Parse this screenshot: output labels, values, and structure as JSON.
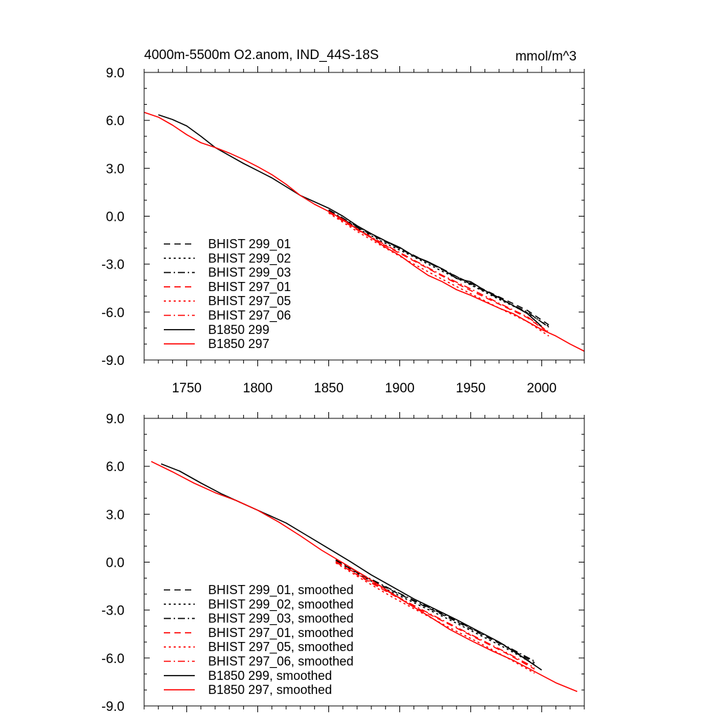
{
  "chart_data": [
    {
      "type": "line",
      "title": "4000m-5500m O2.anom, IND_44S-18S",
      "units": "mmol/m^3",
      "xlim": [
        1720,
        2030
      ],
      "ylim": [
        -9,
        9
      ],
      "xticks": [
        1750,
        1800,
        1850,
        1900,
        1950,
        2000
      ],
      "xtick_labels": [
        "1750",
        "1800",
        "1850",
        "1900",
        "1950",
        "2000"
      ],
      "yticks": [
        -9,
        -6,
        -3,
        0,
        3,
        6,
        9
      ],
      "ytick_labels": [
        "-9.0",
        "-6.0",
        "-3.0",
        "0.0",
        "3.0",
        "6.0",
        "9.0"
      ],
      "legend_position": "bottom-left",
      "series": [
        {
          "name": "BHIST 299_01",
          "color": "#000000",
          "dash": "dash",
          "x": [
            1850,
            1870,
            1890,
            1910,
            1930,
            1950,
            1970,
            1990,
            2005
          ],
          "y": [
            0.35,
            -0.7,
            -1.6,
            -2.45,
            -3.35,
            -4.2,
            -5.05,
            -5.9,
            -6.8
          ]
        },
        {
          "name": "BHIST 299_02",
          "color": "#000000",
          "dash": "dot",
          "x": [
            1850,
            1870,
            1890,
            1910,
            1930,
            1950,
            1970,
            1990,
            2005
          ],
          "y": [
            0.3,
            -0.75,
            -1.7,
            -2.55,
            -3.45,
            -4.3,
            -5.2,
            -6.05,
            -6.9
          ]
        },
        {
          "name": "BHIST 299_03",
          "color": "#000000",
          "dash": "dashdot",
          "x": [
            1850,
            1870,
            1890,
            1910,
            1930,
            1950,
            1970,
            1990,
            2005
          ],
          "y": [
            0.4,
            -0.65,
            -1.55,
            -2.5,
            -3.3,
            -4.25,
            -5.15,
            -6.0,
            -6.95
          ]
        },
        {
          "name": "BHIST 297_01",
          "color": "#ff0000",
          "dash": "dash",
          "x": [
            1850,
            1870,
            1890,
            1910,
            1930,
            1950,
            1970,
            1990,
            2005
          ],
          "y": [
            0.25,
            -0.85,
            -1.85,
            -2.8,
            -3.75,
            -4.65,
            -5.5,
            -6.35,
            -7.3
          ]
        },
        {
          "name": "BHIST 297_05",
          "color": "#ff0000",
          "dash": "dot",
          "x": [
            1850,
            1870,
            1890,
            1910,
            1930,
            1950,
            1970,
            1990,
            2005
          ],
          "y": [
            0.2,
            -0.95,
            -2.0,
            -3.0,
            -3.95,
            -4.85,
            -5.75,
            -6.6,
            -7.5
          ]
        },
        {
          "name": "BHIST 297_06",
          "color": "#ff0000",
          "dash": "dashdot",
          "x": [
            1850,
            1870,
            1890,
            1910,
            1930,
            1950,
            1970,
            1990,
            2005
          ],
          "y": [
            0.3,
            -0.8,
            -1.8,
            -2.75,
            -3.7,
            -4.55,
            -5.45,
            -6.3,
            -7.25
          ]
        },
        {
          "name": "B1850 299",
          "color": "#000000",
          "dash": "solid",
          "x": [
            1730,
            1740,
            1750,
            1760,
            1770,
            1780,
            1790,
            1800,
            1810,
            1820,
            1830,
            1840,
            1850,
            1860,
            1870,
            1880,
            1890,
            1900,
            1910,
            1920,
            1930,
            1940,
            1950,
            1960,
            1970,
            1980,
            1990,
            2000
          ],
          "y": [
            6.35,
            6.05,
            5.65,
            5.0,
            4.3,
            3.8,
            3.3,
            2.85,
            2.4,
            1.85,
            1.3,
            0.9,
            0.5,
            0.0,
            -0.6,
            -1.1,
            -1.55,
            -1.95,
            -2.5,
            -2.85,
            -3.3,
            -3.9,
            -4.1,
            -4.65,
            -5.1,
            -5.6,
            -6.1,
            -6.9
          ]
        },
        {
          "name": "B1850 297",
          "color": "#ff0000",
          "dash": "solid",
          "x": [
            1720,
            1730,
            1740,
            1750,
            1760,
            1770,
            1780,
            1790,
            1800,
            1810,
            1820,
            1830,
            1840,
            1850,
            1860,
            1870,
            1880,
            1890,
            1900,
            1910,
            1920,
            1930,
            1940,
            1950,
            1960,
            1970,
            1980,
            1990,
            2000,
            2010,
            2020,
            2030
          ],
          "y": [
            6.5,
            6.2,
            5.7,
            5.1,
            4.6,
            4.3,
            3.95,
            3.55,
            3.1,
            2.6,
            2.0,
            1.3,
            0.75,
            0.3,
            -0.2,
            -0.8,
            -1.35,
            -1.95,
            -2.45,
            -3.1,
            -3.7,
            -4.1,
            -4.6,
            -4.95,
            -5.35,
            -5.75,
            -6.1,
            -6.6,
            -7.1,
            -7.5,
            -8.0,
            -8.45
          ]
        }
      ]
    },
    {
      "type": "line",
      "title": "",
      "xlim": [
        1720,
        2030
      ],
      "ylim": [
        -9,
        9
      ],
      "xticks": [
        1750,
        1800,
        1850,
        1900,
        1950,
        2000
      ],
      "yticks": [
        -9,
        -6,
        -3,
        0,
        3,
        6,
        9
      ],
      "ytick_labels": [
        "-9.0",
        "-6.0",
        "-3.0",
        "0.0",
        "3.0",
        "6.0",
        "9.0"
      ],
      "legend_position": "bottom-left",
      "series": [
        {
          "name": "BHIST 299_01, smoothed",
          "color": "#000000",
          "dash": "dash",
          "x": [
            1855,
            1875,
            1895,
            1915,
            1935,
            1955,
            1975,
            1995
          ],
          "y": [
            0.1,
            -0.9,
            -1.8,
            -2.65,
            -3.5,
            -4.4,
            -5.3,
            -6.3
          ]
        },
        {
          "name": "BHIST 299_02, smoothed",
          "color": "#000000",
          "dash": "dot",
          "x": [
            1855,
            1875,
            1895,
            1915,
            1935,
            1955,
            1975,
            1995
          ],
          "y": [
            0.05,
            -0.95,
            -1.9,
            -2.75,
            -3.6,
            -4.5,
            -5.4,
            -6.4
          ]
        },
        {
          "name": "BHIST 299_03, smoothed",
          "color": "#000000",
          "dash": "dashdot",
          "x": [
            1855,
            1875,
            1895,
            1915,
            1935,
            1955,
            1975,
            1995
          ],
          "y": [
            0.15,
            -0.85,
            -1.75,
            -2.6,
            -3.45,
            -4.35,
            -5.25,
            -6.2
          ]
        },
        {
          "name": "BHIST 297_01, smoothed",
          "color": "#ff0000",
          "dash": "dash",
          "x": [
            1855,
            1875,
            1895,
            1915,
            1935,
            1955,
            1975,
            1995
          ],
          "y": [
            0.0,
            -1.05,
            -2.05,
            -3.0,
            -3.9,
            -4.8,
            -5.7,
            -6.7
          ]
        },
        {
          "name": "BHIST 297_05, smoothed",
          "color": "#ff0000",
          "dash": "dot",
          "x": [
            1855,
            1875,
            1895,
            1915,
            1935,
            1955,
            1975,
            1995
          ],
          "y": [
            -0.05,
            -1.15,
            -2.2,
            -3.15,
            -4.1,
            -5.0,
            -5.95,
            -6.95
          ]
        },
        {
          "name": "BHIST 297_06, smoothed",
          "color": "#ff0000",
          "dash": "dashdot",
          "x": [
            1855,
            1875,
            1895,
            1915,
            1935,
            1955,
            1975,
            1995
          ],
          "y": [
            0.05,
            -1.0,
            -2.0,
            -2.95,
            -3.85,
            -4.75,
            -5.65,
            -6.6
          ]
        },
        {
          "name": "B1850 299, smoothed",
          "color": "#000000",
          "dash": "solid",
          "x": [
            1732,
            1745,
            1760,
            1775,
            1790,
            1805,
            1820,
            1835,
            1850,
            1865,
            1880,
            1895,
            1910,
            1925,
            1940,
            1955,
            1970,
            1985,
            2000
          ],
          "y": [
            6.15,
            5.7,
            4.95,
            4.25,
            3.65,
            3.05,
            2.45,
            1.65,
            0.85,
            0.05,
            -0.8,
            -1.55,
            -2.3,
            -2.95,
            -3.6,
            -4.3,
            -5.0,
            -5.85,
            -6.75
          ]
        },
        {
          "name": "B1850 297, smoothed",
          "color": "#ff0000",
          "dash": "solid",
          "x": [
            1725,
            1740,
            1755,
            1770,
            1785,
            1800,
            1815,
            1830,
            1845,
            1860,
            1875,
            1890,
            1905,
            1920,
            1935,
            1950,
            1965,
            1980,
            1995,
            2010,
            2025
          ],
          "y": [
            6.3,
            5.65,
            4.95,
            4.35,
            3.85,
            3.25,
            2.5,
            1.65,
            0.75,
            -0.05,
            -0.85,
            -1.7,
            -2.55,
            -3.35,
            -4.2,
            -4.9,
            -5.55,
            -6.15,
            -6.85,
            -7.55,
            -8.1
          ]
        }
      ]
    }
  ]
}
